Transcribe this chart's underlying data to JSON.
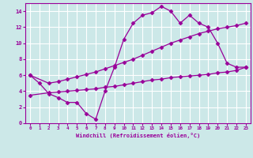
{
  "line1_x": [
    0,
    1,
    2,
    3,
    4,
    5,
    6,
    7,
    8,
    9,
    10,
    11,
    12,
    13,
    14,
    15,
    16,
    17,
    18,
    19,
    20,
    21,
    22,
    23
  ],
  "line1_y": [
    6.0,
    5.0,
    3.7,
    3.2,
    2.6,
    2.6,
    1.2,
    0.5,
    4.0,
    7.0,
    10.5,
    12.5,
    13.5,
    13.8,
    14.6,
    14.0,
    12.5,
    13.5,
    12.5,
    12.0,
    10.0,
    7.5,
    7.0,
    7.0
  ],
  "line2_x": [
    0,
    2,
    3,
    4,
    5,
    6,
    7,
    8,
    9,
    10,
    11,
    12,
    13,
    14,
    15,
    16,
    17,
    18,
    19,
    20,
    21,
    22,
    23
  ],
  "line2_y": [
    6.0,
    5.0,
    5.2,
    5.5,
    5.8,
    6.1,
    6.4,
    6.8,
    7.2,
    7.6,
    8.0,
    8.5,
    9.0,
    9.5,
    10.0,
    10.4,
    10.8,
    11.2,
    11.5,
    11.8,
    12.0,
    12.2,
    12.5
  ],
  "line3_x": [
    0,
    2,
    3,
    4,
    5,
    6,
    7,
    8,
    9,
    10,
    11,
    12,
    13,
    14,
    15,
    16,
    17,
    18,
    19,
    20,
    21,
    22,
    23
  ],
  "line3_y": [
    3.5,
    3.8,
    3.9,
    4.0,
    4.1,
    4.2,
    4.3,
    4.5,
    4.6,
    4.8,
    5.0,
    5.2,
    5.4,
    5.5,
    5.7,
    5.8,
    5.9,
    6.0,
    6.1,
    6.3,
    6.4,
    6.6,
    7.0
  ],
  "line_color": "#990099",
  "bg_color": "#cce8e8",
  "grid_color": "#ffffff",
  "xlabel": "Windchill (Refroidissement éolien,°C)",
  "xlim": [
    -0.5,
    23.5
  ],
  "ylim": [
    0,
    15
  ],
  "xticks": [
    0,
    1,
    2,
    3,
    4,
    5,
    6,
    7,
    8,
    9,
    10,
    11,
    12,
    13,
    14,
    15,
    16,
    17,
    18,
    19,
    20,
    21,
    22,
    23
  ],
  "yticks": [
    0,
    2,
    4,
    6,
    8,
    10,
    12,
    14
  ],
  "marker": "D",
  "markersize": 2.5,
  "linewidth": 0.9
}
